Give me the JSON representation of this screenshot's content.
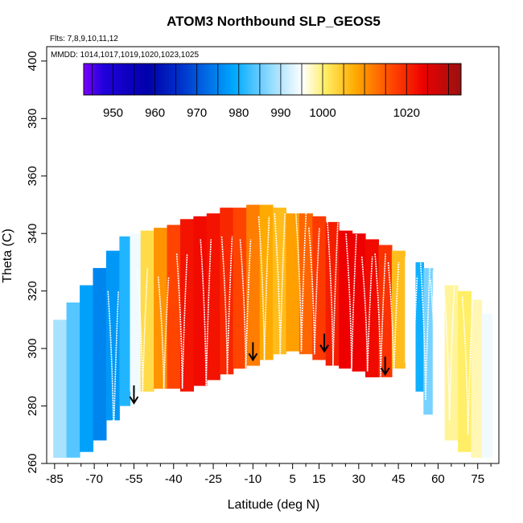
{
  "chart_data": {
    "type": "heatmap",
    "title": "ATOM3 Northbound SLP_GEOS5",
    "flights_note": "Flts: 7,8,9,10,11,12",
    "dates_note": "MMDD: 1014,1017,1019,1020,1023,1025",
    "xlabel": "Latitude (deg N)",
    "ylabel": "Theta (C)",
    "xlim": [
      -88,
      83
    ],
    "ylim": [
      260,
      405
    ],
    "x_ticks": [
      -85,
      -70,
      -55,
      -40,
      -25,
      -10,
      5,
      15,
      30,
      45,
      60,
      75
    ],
    "y_ticks": [
      260,
      280,
      300,
      320,
      340,
      360,
      380,
      400
    ],
    "colorbar": {
      "label_values": [
        950,
        960,
        970,
        980,
        990,
        1000,
        1020
      ],
      "range": [
        943,
        1033
      ]
    },
    "field": {
      "description_units": "SLP (hPa) vs latitude and theta",
      "lat": [
        -83,
        -78,
        -73,
        -68,
        -63,
        -58,
        -55,
        -50,
        -45,
        -40,
        -35,
        -30,
        -25,
        -20,
        -15,
        -10,
        -5,
        0,
        5,
        10,
        15,
        20,
        25,
        30,
        35,
        40,
        45,
        50,
        53,
        56,
        60,
        65,
        70,
        75,
        78
      ],
      "slp": [
        989,
        984,
        978,
        975,
        977,
        981,
        994,
        1003,
        1010,
        1017,
        1022,
        1023,
        1022,
        1020,
        1017,
        1012,
        1008,
        1006,
        1009,
        1014,
        1018,
        1021,
        1024,
        1024,
        1023,
        1019,
        1006,
        995,
        980,
        986,
        995,
        999,
        1001,
        998,
        994
      ],
      "theta_bottom": [
        262,
        262,
        264,
        268,
        275,
        280,
        285,
        285,
        286,
        286,
        285,
        287,
        289,
        291,
        293,
        294,
        296,
        298,
        299,
        298,
        296,
        294,
        293,
        292,
        290,
        290,
        293,
        295,
        285,
        277,
        272,
        268,
        264,
        262,
        262
      ],
      "theta_top": [
        310,
        316,
        322,
        328,
        334,
        339,
        340,
        341,
        342,
        343,
        345,
        346,
        347,
        349,
        349,
        350,
        350,
        349,
        347,
        347,
        346,
        344,
        341,
        340,
        338,
        336,
        334,
        332,
        330,
        328,
        327,
        322,
        320,
        317,
        312
      ]
    },
    "arrows": [
      {
        "lat": -55,
        "theta": 281
      },
      {
        "lat": -10,
        "theta": 296
      },
      {
        "lat": 17,
        "theta": 299
      },
      {
        "lat": 40,
        "theta": 291
      }
    ],
    "traces": [
      {
        "lat": -63,
        "theta_min": 268,
        "theta_max": 320
      },
      {
        "lat": -52,
        "theta_min": 285,
        "theta_max": 328
      },
      {
        "lat": -44,
        "theta_min": 286,
        "theta_max": 325
      },
      {
        "lat": -37,
        "theta_min": 286,
        "theta_max": 333
      },
      {
        "lat": -28,
        "theta_min": 287,
        "theta_max": 338
      },
      {
        "lat": -20,
        "theta_min": 291,
        "theta_max": 339
      },
      {
        "lat": -13,
        "theta_min": 293,
        "theta_max": 338
      },
      {
        "lat": -6,
        "theta_min": 296,
        "theta_max": 346
      },
      {
        "lat": 0,
        "theta_min": 298,
        "theta_max": 347
      },
      {
        "lat": 8,
        "theta_min": 299,
        "theta_max": 348
      },
      {
        "lat": 13,
        "theta_min": 298,
        "theta_max": 342
      },
      {
        "lat": 20,
        "theta_min": 294,
        "theta_max": 344
      },
      {
        "lat": 27,
        "theta_min": 293,
        "theta_max": 340
      },
      {
        "lat": 33,
        "theta_min": 292,
        "theta_max": 332
      },
      {
        "lat": 38,
        "theta_min": 290,
        "theta_max": 333
      },
      {
        "lat": 43,
        "theta_min": 290,
        "theta_max": 330
      },
      {
        "lat": 50,
        "theta_min": 283,
        "theta_max": 325
      },
      {
        "lat": 55,
        "theta_min": 282,
        "theta_max": 333
      },
      {
        "lat": 59,
        "theta_min": 280,
        "theta_max": 324
      },
      {
        "lat": 64,
        "theta_min": 275,
        "theta_max": 322
      },
      {
        "lat": 71,
        "theta_min": 270,
        "theta_max": 318
      }
    ]
  }
}
